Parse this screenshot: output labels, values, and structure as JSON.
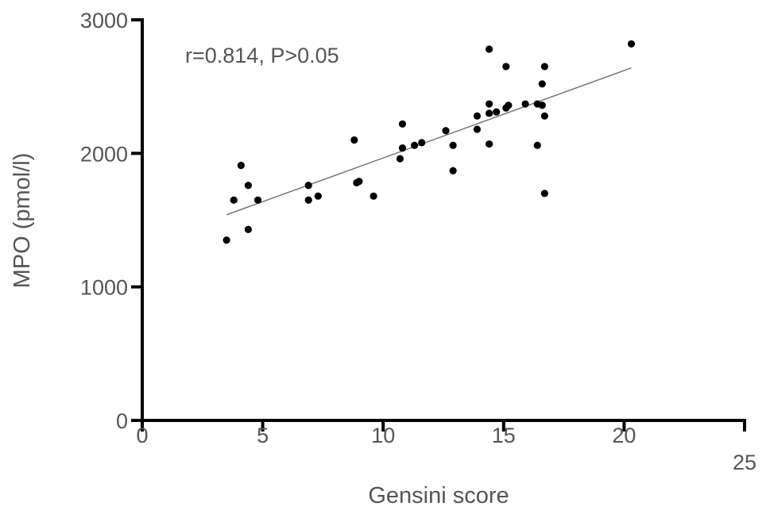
{
  "chart_data": {
    "type": "scatter",
    "xlabel": "Gensini score",
    "ylabel": "MPO (pmol/l)",
    "annotation": "r=0.814, P>0.05",
    "xlim": [
      0,
      25
    ],
    "ylim": [
      0,
      3000
    ],
    "x_ticks": [
      0,
      5,
      10,
      15,
      20,
      25
    ],
    "y_ticks": [
      0,
      1000,
      2000,
      3000
    ],
    "grid": false,
    "legend": "none",
    "series": [
      {
        "points": [
          {
            "x": 3.5,
            "y": 1350
          },
          {
            "x": 3.8,
            "y": 1650
          },
          {
            "x": 4.1,
            "y": 1910
          },
          {
            "x": 4.4,
            "y": 1760
          },
          {
            "x": 4.4,
            "y": 1430
          },
          {
            "x": 4.8,
            "y": 1650
          },
          {
            "x": 6.9,
            "y": 1760
          },
          {
            "x": 6.9,
            "y": 1650
          },
          {
            "x": 7.3,
            "y": 1680
          },
          {
            "x": 8.8,
            "y": 2100
          },
          {
            "x": 8.9,
            "y": 1780
          },
          {
            "x": 9.0,
            "y": 1790
          },
          {
            "x": 9.6,
            "y": 1680
          },
          {
            "x": 10.7,
            "y": 1960
          },
          {
            "x": 10.8,
            "y": 2220
          },
          {
            "x": 10.8,
            "y": 2040
          },
          {
            "x": 11.3,
            "y": 2060
          },
          {
            "x": 11.6,
            "y": 2080
          },
          {
            "x": 12.6,
            "y": 2170
          },
          {
            "x": 12.9,
            "y": 2060
          },
          {
            "x": 12.9,
            "y": 1870
          },
          {
            "x": 13.9,
            "y": 2280
          },
          {
            "x": 13.9,
            "y": 2180
          },
          {
            "x": 14.4,
            "y": 2780
          },
          {
            "x": 14.4,
            "y": 2370
          },
          {
            "x": 14.4,
            "y": 2300
          },
          {
            "x": 14.4,
            "y": 2070
          },
          {
            "x": 14.7,
            "y": 2310
          },
          {
            "x": 15.1,
            "y": 2650
          },
          {
            "x": 15.1,
            "y": 2340
          },
          {
            "x": 15.2,
            "y": 2360
          },
          {
            "x": 15.9,
            "y": 2370
          },
          {
            "x": 16.4,
            "y": 2370
          },
          {
            "x": 16.4,
            "y": 2060
          },
          {
            "x": 16.6,
            "y": 2520
          },
          {
            "x": 16.6,
            "y": 2360
          },
          {
            "x": 16.7,
            "y": 2650
          },
          {
            "x": 16.7,
            "y": 2280
          },
          {
            "x": 16.7,
            "y": 1700
          },
          {
            "x": 20.3,
            "y": 2820
          }
        ]
      }
    ],
    "trendline": {
      "x1": 3.5,
      "y1": 1540,
      "x2": 20.3,
      "y2": 2640
    },
    "colors": {
      "points": "#000000",
      "axes": "#000000",
      "trendline": "#777777",
      "text": "#555555"
    }
  }
}
